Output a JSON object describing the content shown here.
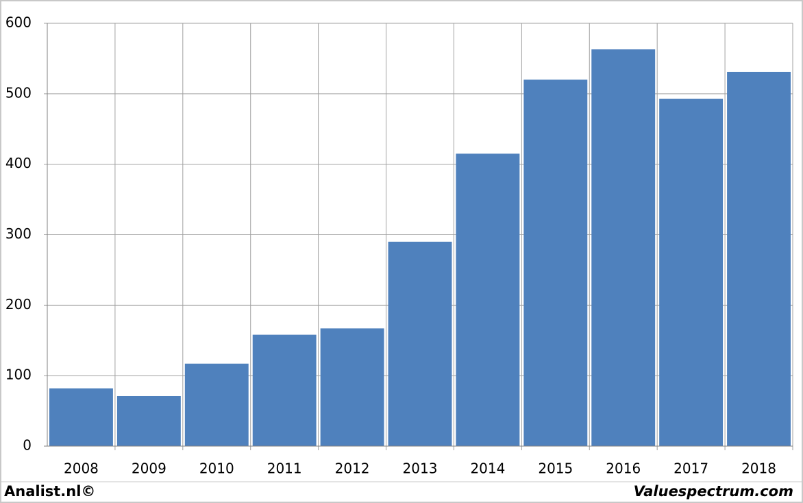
{
  "chart_data": {
    "type": "bar",
    "categories": [
      "2008",
      "2009",
      "2010",
      "2011",
      "2012",
      "2013",
      "2014",
      "2015",
      "2016",
      "2017",
      "2018"
    ],
    "values": [
      82,
      71,
      117,
      158,
      167,
      290,
      415,
      520,
      563,
      493,
      531
    ],
    "color": "#4f81bd",
    "ylim": [
      0,
      600
    ],
    "yticks": [
      0,
      100,
      200,
      300,
      400,
      500,
      600
    ],
    "grid": true,
    "source_left": "Analist.nl©",
    "source_right": "Valuespectrum.com"
  }
}
